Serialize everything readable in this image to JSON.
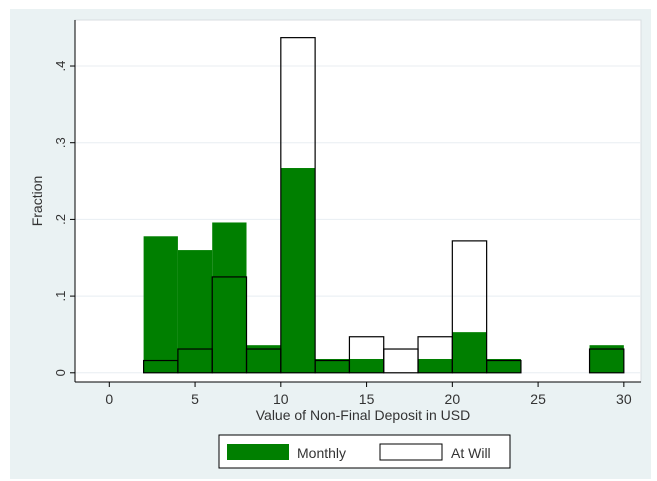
{
  "chart_data": {
    "type": "bar",
    "xlabel": "Value of Non-Final Deposit in USD",
    "ylabel": "Fraction",
    "xlim": [
      -2,
      31
    ],
    "ylim": [
      -0.012,
      0.46
    ],
    "x_ticks": [
      {
        "value": 0,
        "label": "0"
      },
      {
        "value": 5,
        "label": "5"
      },
      {
        "value": 10,
        "label": "10"
      },
      {
        "value": 15,
        "label": "15"
      },
      {
        "value": 20,
        "label": "20"
      },
      {
        "value": 25,
        "label": "25"
      },
      {
        "value": 30,
        "label": "30"
      }
    ],
    "y_ticks": [
      {
        "value": 0,
        "label": "0"
      },
      {
        "value": 0.1,
        "label": ".1"
      },
      {
        "value": 0.2,
        "label": ".2"
      },
      {
        "value": 0.3,
        "label": ".3"
      },
      {
        "value": 0.4,
        "label": ".4"
      }
    ],
    "grid": true,
    "legend_position": "bottom",
    "colors": {
      "monthly": "#007f00",
      "at_will_fill": "#ffffff",
      "outline": "#000000",
      "grid": "#e8eef2",
      "frame_bg": "#eaf2f3"
    },
    "series": [
      {
        "name": "Monthly",
        "style": "filled",
        "bins": [
          {
            "x0": 2,
            "x1": 4,
            "value": 0.178
          },
          {
            "x0": 4,
            "x1": 6,
            "value": 0.16
          },
          {
            "x0": 6,
            "x1": 8,
            "value": 0.196
          },
          {
            "x0": 8,
            "x1": 10,
            "value": 0.036
          },
          {
            "x0": 10,
            "x1": 12,
            "value": 0.267
          },
          {
            "x0": 12,
            "x1": 14,
            "value": 0.018
          },
          {
            "x0": 14,
            "x1": 16,
            "value": 0.018
          },
          {
            "x0": 18,
            "x1": 20,
            "value": 0.018
          },
          {
            "x0": 20,
            "x1": 22,
            "value": 0.053
          },
          {
            "x0": 22,
            "x1": 24,
            "value": 0.018
          },
          {
            "x0": 28,
            "x1": 30,
            "value": 0.036
          }
        ]
      },
      {
        "name": "At Will",
        "style": "outline",
        "bins": [
          {
            "x0": 2,
            "x1": 4,
            "value": 0.016
          },
          {
            "x0": 4,
            "x1": 6,
            "value": 0.031
          },
          {
            "x0": 6,
            "x1": 8,
            "value": 0.125
          },
          {
            "x0": 8,
            "x1": 10,
            "value": 0.031
          },
          {
            "x0": 10,
            "x1": 12,
            "value": 0.437
          },
          {
            "x0": 12,
            "x1": 14,
            "value": 0.016
          },
          {
            "x0": 14,
            "x1": 16,
            "value": 0.047
          },
          {
            "x0": 16,
            "x1": 18,
            "value": 0.031
          },
          {
            "x0": 18,
            "x1": 20,
            "value": 0.047
          },
          {
            "x0": 20,
            "x1": 22,
            "value": 0.172
          },
          {
            "x0": 22,
            "x1": 24,
            "value": 0.016
          },
          {
            "x0": 28,
            "x1": 30,
            "value": 0.031
          }
        ]
      }
    ]
  }
}
